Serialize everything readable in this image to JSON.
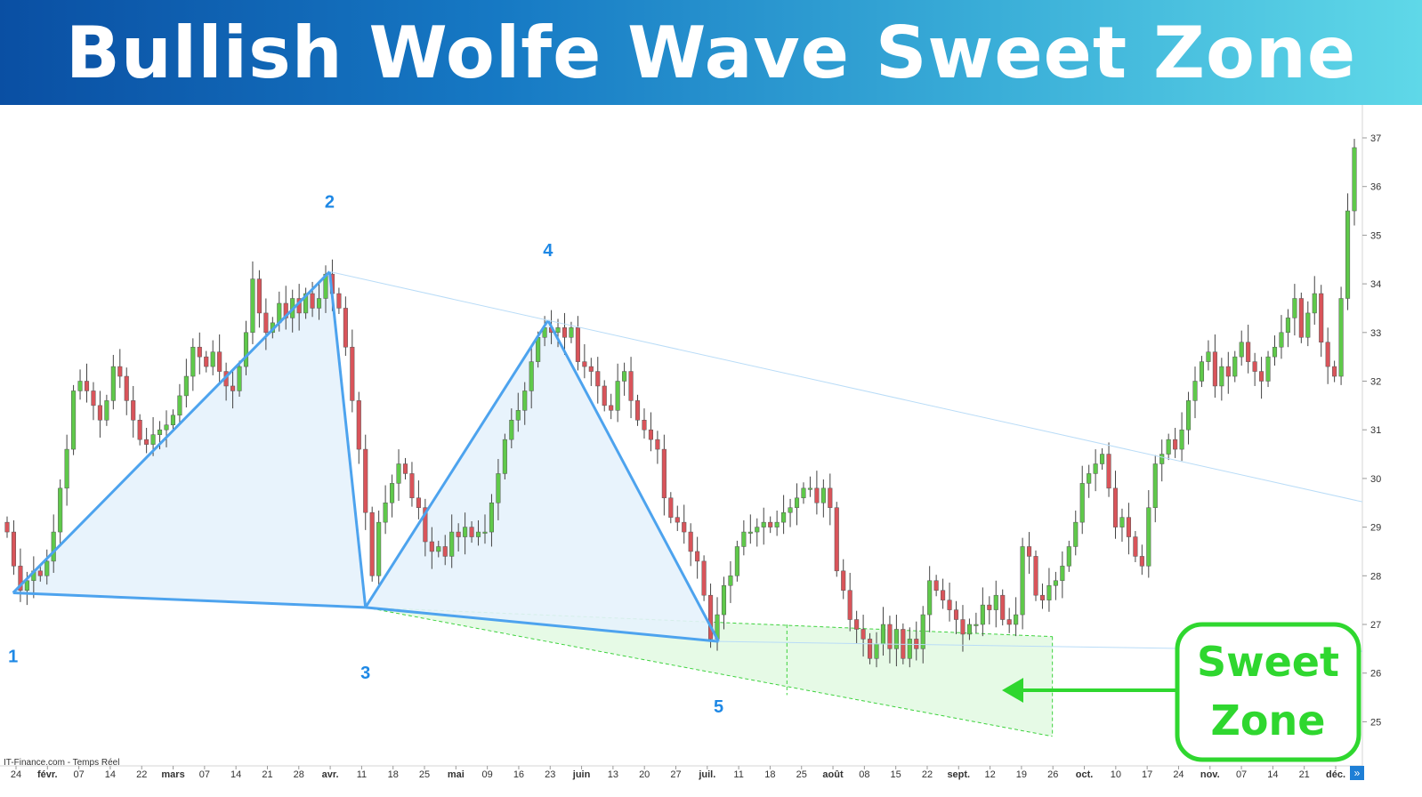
{
  "title": "Bullish Wolfe Wave Sweet Zone",
  "source_text": "IT-Finance.com - Temps Réel",
  "sweet_zone_label": [
    "Sweet",
    "Zone"
  ],
  "scroll_button": "»",
  "colors": {
    "banner_start": "#0a4fa3",
    "banner_end": "#5fd8e8",
    "wave": "#4da3ee",
    "wave_fill": "#e6f2fc",
    "zone": "#3ed23e",
    "zone_fill": "#e2f9e2",
    "bull_candle": "#5fc94a",
    "bear_candle": "#d9545a",
    "point_label": "#1e88e5"
  },
  "chart_data": {
    "type": "candlestick",
    "y_axis": {
      "ticks": [
        37,
        36,
        35,
        34,
        33,
        32,
        31,
        30,
        29,
        28,
        27,
        26,
        25
      ],
      "side": "right"
    },
    "x_axis": {
      "ticks": [
        {
          "label": "24",
          "bold": false
        },
        {
          "label": "févr.",
          "bold": true
        },
        {
          "label": "07",
          "bold": false
        },
        {
          "label": "14",
          "bold": false
        },
        {
          "label": "22",
          "bold": false
        },
        {
          "label": "mars",
          "bold": true
        },
        {
          "label": "07",
          "bold": false
        },
        {
          "label": "14",
          "bold": false
        },
        {
          "label": "21",
          "bold": false
        },
        {
          "label": "28",
          "bold": false
        },
        {
          "label": "avr.",
          "bold": true
        },
        {
          "label": "11",
          "bold": false
        },
        {
          "label": "18",
          "bold": false
        },
        {
          "label": "25",
          "bold": false
        },
        {
          "label": "mai",
          "bold": true
        },
        {
          "label": "09",
          "bold": false
        },
        {
          "label": "16",
          "bold": false
        },
        {
          "label": "23",
          "bold": false
        },
        {
          "label": "juin",
          "bold": true
        },
        {
          "label": "13",
          "bold": false
        },
        {
          "label": "20",
          "bold": false
        },
        {
          "label": "27",
          "bold": false
        },
        {
          "label": "juil.",
          "bold": true
        },
        {
          "label": "11",
          "bold": false
        },
        {
          "label": "18",
          "bold": false
        },
        {
          "label": "25",
          "bold": false
        },
        {
          "label": "août",
          "bold": true
        },
        {
          "label": "08",
          "bold": false
        },
        {
          "label": "15",
          "bold": false
        },
        {
          "label": "22",
          "bold": false
        },
        {
          "label": "sept.",
          "bold": true
        },
        {
          "label": "12",
          "bold": false
        },
        {
          "label": "19",
          "bold": false
        },
        {
          "label": "26",
          "bold": false
        },
        {
          "label": "oct.",
          "bold": true
        },
        {
          "label": "10",
          "bold": false
        },
        {
          "label": "17",
          "bold": false
        },
        {
          "label": "24",
          "bold": false
        },
        {
          "label": "nov.",
          "bold": true
        },
        {
          "label": "07",
          "bold": false
        },
        {
          "label": "14",
          "bold": false
        },
        {
          "label": "21",
          "bold": false
        },
        {
          "label": "déc.",
          "bold": true
        }
      ]
    },
    "wave_points": [
      {
        "label": "1",
        "price": 27.65
      },
      {
        "label": "2",
        "price": 34.25
      },
      {
        "label": "3",
        "price": 27.35
      },
      {
        "label": "4",
        "price": 33.25
      },
      {
        "label": "5",
        "price": 26.65
      }
    ],
    "closes": [
      28.9,
      28.2,
      27.7,
      27.9,
      28.1,
      28.0,
      28.3,
      28.9,
      29.8,
      30.6,
      31.8,
      32.0,
      31.8,
      31.5,
      31.2,
      31.6,
      32.3,
      32.1,
      31.6,
      31.2,
      30.8,
      30.7,
      30.9,
      31.0,
      31.1,
      31.3,
      31.7,
      32.1,
      32.7,
      32.5,
      32.3,
      32.6,
      32.2,
      31.9,
      31.8,
      32.3,
      33.0,
      34.1,
      33.4,
      33.0,
      33.2,
      33.6,
      33.3,
      33.7,
      33.4,
      33.8,
      33.5,
      33.7,
      34.2,
      33.8,
      33.5,
      32.7,
      31.6,
      30.6,
      29.3,
      28.0,
      29.1,
      29.5,
      29.9,
      30.3,
      30.1,
      29.6,
      29.4,
      28.7,
      28.5,
      28.6,
      28.4,
      28.9,
      28.8,
      29.0,
      28.8,
      28.9,
      28.9,
      29.5,
      30.1,
      30.8,
      31.2,
      31.4,
      31.8,
      32.4,
      32.9,
      33.1,
      33.0,
      33.1,
      32.9,
      33.1,
      32.4,
      32.3,
      32.2,
      31.9,
      31.5,
      31.4,
      32.0,
      32.2,
      31.6,
      31.2,
      31.0,
      30.8,
      30.6,
      29.6,
      29.2,
      29.1,
      28.9,
      28.5,
      28.3,
      27.6,
      26.7,
      27.2,
      27.8,
      28.0,
      28.6,
      28.9,
      28.9,
      29.0,
      29.1,
      29.0,
      29.1,
      29.3,
      29.4,
      29.6,
      29.8,
      29.8,
      29.5,
      29.8,
      29.4,
      28.1,
      27.7,
      27.1,
      26.9,
      26.7,
      26.3,
      26.6,
      27.0,
      26.5,
      26.9,
      26.3,
      26.7,
      26.5,
      27.2,
      27.9,
      27.7,
      27.5,
      27.3,
      27.1,
      26.8,
      27.0,
      27.0,
      27.4,
      27.3,
      27.6,
      27.1,
      27.0,
      27.2,
      28.6,
      28.4,
      27.6,
      27.5,
      27.8,
      27.9,
      28.2,
      28.6,
      29.1,
      29.9,
      30.1,
      30.3,
      30.5,
      29.8,
      29.0,
      29.2,
      28.8,
      28.4,
      28.2,
      29.4,
      30.3,
      30.5,
      30.8,
      30.6,
      31.0,
      31.6,
      32.0,
      32.4,
      32.6,
      31.9,
      32.3,
      32.1,
      32.5,
      32.8,
      32.4,
      32.2,
      32.0,
      32.5,
      32.7,
      33.0,
      33.3,
      33.7,
      32.9,
      33.4,
      33.8,
      32.8,
      32.3,
      32.1,
      33.7,
      35.5,
      36.8
    ]
  }
}
